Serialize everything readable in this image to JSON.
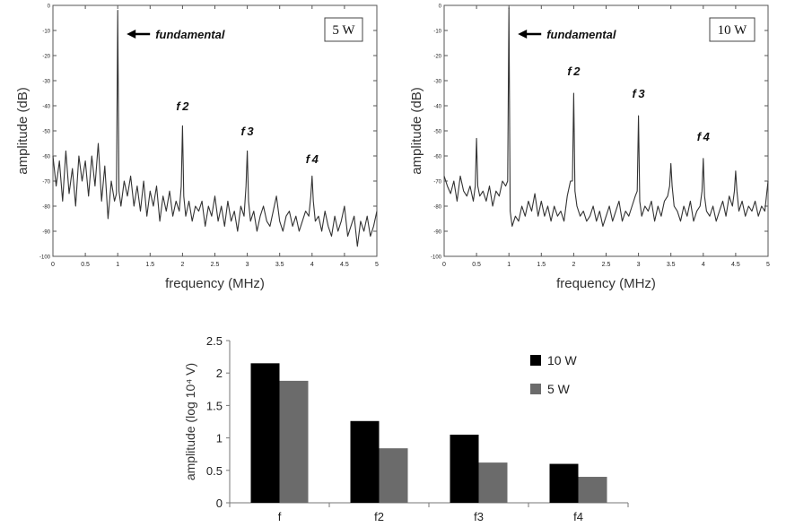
{
  "chart_data": [
    {
      "type": "line",
      "title": "5 W",
      "xlabel": "frequency (MHz)",
      "ylabel": "amplitude (dB)",
      "xlim": [
        0,
        5
      ],
      "ylim": [
        -100,
        0
      ],
      "x_ticks": [
        "0",
        "0.5",
        "1",
        "1.5",
        "2",
        "2.5",
        "3",
        "3.5",
        "4",
        "4.5",
        "5"
      ],
      "y_ticks": [
        "0",
        "-10",
        "-20",
        "-30",
        "-40",
        "-50",
        "-60",
        "-70",
        "-80",
        "-90",
        "-100"
      ],
      "annotations": [
        {
          "text": "fundamental",
          "x": 1.0,
          "y": -5,
          "arrow": true
        },
        {
          "text": "f2",
          "x": 2.0,
          "y": -44
        },
        {
          "text": "f3",
          "x": 3.0,
          "y": -54
        },
        {
          "text": "f4",
          "x": 4.0,
          "y": -65
        }
      ],
      "series": [
        {
          "name": "spectrum",
          "x": [
            0,
            0.05,
            0.1,
            0.15,
            0.2,
            0.25,
            0.3,
            0.35,
            0.4,
            0.45,
            0.5,
            0.55,
            0.6,
            0.65,
            0.7,
            0.75,
            0.8,
            0.85,
            0.9,
            0.95,
            0.98,
            1.0,
            1.02,
            1.05,
            1.1,
            1.15,
            1.2,
            1.25,
            1.3,
            1.35,
            1.4,
            1.45,
            1.5,
            1.55,
            1.6,
            1.65,
            1.7,
            1.75,
            1.8,
            1.85,
            1.9,
            1.95,
            1.98,
            2.0,
            2.02,
            2.05,
            2.1,
            2.15,
            2.2,
            2.25,
            2.3,
            2.35,
            2.4,
            2.45,
            2.5,
            2.55,
            2.6,
            2.65,
            2.7,
            2.75,
            2.8,
            2.85,
            2.9,
            2.95,
            2.98,
            3.0,
            3.02,
            3.05,
            3.1,
            3.15,
            3.2,
            3.25,
            3.3,
            3.35,
            3.4,
            3.45,
            3.5,
            3.55,
            3.6,
            3.65,
            3.7,
            3.75,
            3.8,
            3.85,
            3.9,
            3.95,
            3.98,
            4.0,
            4.02,
            4.05,
            4.1,
            4.15,
            4.2,
            4.25,
            4.3,
            4.35,
            4.4,
            4.45,
            4.5,
            4.55,
            4.6,
            4.65,
            4.7,
            4.75,
            4.8,
            4.85,
            4.9,
            4.95,
            5.0
          ],
          "y": [
            -60,
            -72,
            -62,
            -78,
            -58,
            -75,
            -65,
            -80,
            -60,
            -70,
            -62,
            -76,
            -60,
            -72,
            -55,
            -78,
            -64,
            -85,
            -70,
            -78,
            -75,
            -2,
            -74,
            -80,
            -70,
            -76,
            -68,
            -80,
            -72,
            -82,
            -70,
            -84,
            -74,
            -80,
            -72,
            -86,
            -76,
            -82,
            -74,
            -84,
            -78,
            -82,
            -72,
            -48,
            -76,
            -84,
            -78,
            -86,
            -80,
            -82,
            -78,
            -88,
            -80,
            -84,
            -76,
            -86,
            -80,
            -88,
            -78,
            -86,
            -82,
            -90,
            -80,
            -84,
            -72,
            -58,
            -78,
            -86,
            -82,
            -90,
            -84,
            -80,
            -86,
            -88,
            -82,
            -76,
            -86,
            -90,
            -84,
            -82,
            -88,
            -84,
            -90,
            -86,
            -82,
            -84,
            -76,
            -68,
            -78,
            -86,
            -84,
            -90,
            -82,
            -88,
            -92,
            -84,
            -90,
            -86,
            -80,
            -92,
            -88,
            -84,
            -96,
            -86,
            -90,
            -84,
            -92,
            -88,
            -82
          ]
        }
      ]
    },
    {
      "type": "line",
      "title": "10 W",
      "xlabel": "frequency (MHz)",
      "ylabel": "amplitude (dB)",
      "xlim": [
        0,
        5
      ],
      "ylim": [
        -100,
        0
      ],
      "x_ticks": [
        "0",
        "0.5",
        "1",
        "1.5",
        "2",
        "2.5",
        "3",
        "3.5",
        "4",
        "4.5",
        "5"
      ],
      "y_ticks": [
        "0",
        "-10",
        "-20",
        "-30",
        "-40",
        "-50",
        "-60",
        "-70",
        "-80",
        "-90",
        "-100"
      ],
      "annotations": [
        {
          "text": "fundamental",
          "x": 1.0,
          "y": -5,
          "arrow": true
        },
        {
          "text": "f2",
          "x": 2.0,
          "y": -30
        },
        {
          "text": "f3",
          "x": 3.0,
          "y": -39
        },
        {
          "text": "f4",
          "x": 4.0,
          "y": -56
        }
      ],
      "series": [
        {
          "name": "spectrum",
          "x": [
            0,
            0.05,
            0.1,
            0.15,
            0.2,
            0.25,
            0.3,
            0.35,
            0.4,
            0.45,
            0.48,
            0.5,
            0.52,
            0.55,
            0.6,
            0.65,
            0.7,
            0.75,
            0.8,
            0.85,
            0.9,
            0.95,
            0.98,
            1.0,
            1.02,
            1.05,
            1.1,
            1.15,
            1.2,
            1.25,
            1.3,
            1.35,
            1.4,
            1.45,
            1.5,
            1.55,
            1.6,
            1.65,
            1.7,
            1.75,
            1.8,
            1.85,
            1.9,
            1.95,
            1.98,
            2.0,
            2.02,
            2.05,
            2.1,
            2.15,
            2.2,
            2.25,
            2.3,
            2.35,
            2.4,
            2.45,
            2.5,
            2.55,
            2.6,
            2.65,
            2.7,
            2.75,
            2.8,
            2.85,
            2.9,
            2.95,
            2.98,
            3.0,
            3.02,
            3.05,
            3.1,
            3.15,
            3.2,
            3.25,
            3.3,
            3.35,
            3.4,
            3.45,
            3.48,
            3.5,
            3.52,
            3.55,
            3.6,
            3.65,
            3.7,
            3.75,
            3.8,
            3.85,
            3.9,
            3.95,
            3.98,
            4.0,
            4.02,
            4.05,
            4.1,
            4.15,
            4.2,
            4.25,
            4.3,
            4.35,
            4.4,
            4.45,
            4.48,
            4.5,
            4.52,
            4.55,
            4.6,
            4.65,
            4.7,
            4.75,
            4.8,
            4.85,
            4.9,
            4.95,
            5.0
          ],
          "y": [
            -68,
            -72,
            -75,
            -70,
            -78,
            -68,
            -74,
            -76,
            -72,
            -78,
            -72,
            -53,
            -72,
            -76,
            -74,
            -78,
            -72,
            -80,
            -74,
            -76,
            -70,
            -72,
            -70,
            -1,
            -82,
            -88,
            -84,
            -86,
            -80,
            -84,
            -78,
            -82,
            -75,
            -84,
            -78,
            -84,
            -80,
            -86,
            -80,
            -84,
            -82,
            -86,
            -76,
            -70,
            -70,
            -35,
            -74,
            -80,
            -84,
            -82,
            -86,
            -84,
            -80,
            -86,
            -82,
            -88,
            -84,
            -80,
            -86,
            -82,
            -78,
            -86,
            -82,
            -84,
            -80,
            -76,
            -74,
            -44,
            -78,
            -84,
            -80,
            -82,
            -78,
            -86,
            -80,
            -84,
            -78,
            -76,
            -72,
            -63,
            -72,
            -80,
            -82,
            -86,
            -80,
            -84,
            -78,
            -86,
            -82,
            -80,
            -74,
            -61,
            -76,
            -82,
            -84,
            -80,
            -86,
            -82,
            -78,
            -84,
            -76,
            -80,
            -74,
            -66,
            -74,
            -82,
            -78,
            -84,
            -80,
            -82,
            -78,
            -84,
            -80,
            -82,
            -70
          ]
        }
      ]
    },
    {
      "type": "bar",
      "title": "",
      "xlabel": "",
      "ylabel": "amplitude (log 10⁴ V)",
      "ylim": [
        0,
        2.5
      ],
      "y_ticks": [
        "0",
        "0.5",
        "1",
        "1.5",
        "2",
        "2.5"
      ],
      "categories": [
        "f",
        "f2",
        "f3",
        "f4"
      ],
      "legend_position": "top-right",
      "series": [
        {
          "name": "10 W",
          "color": "#000000",
          "values": [
            2.15,
            1.26,
            1.05,
            0.6
          ]
        },
        {
          "name": "5 W",
          "color": "#6b6b6b",
          "values": [
            1.88,
            0.84,
            0.62,
            0.4
          ]
        }
      ]
    }
  ]
}
